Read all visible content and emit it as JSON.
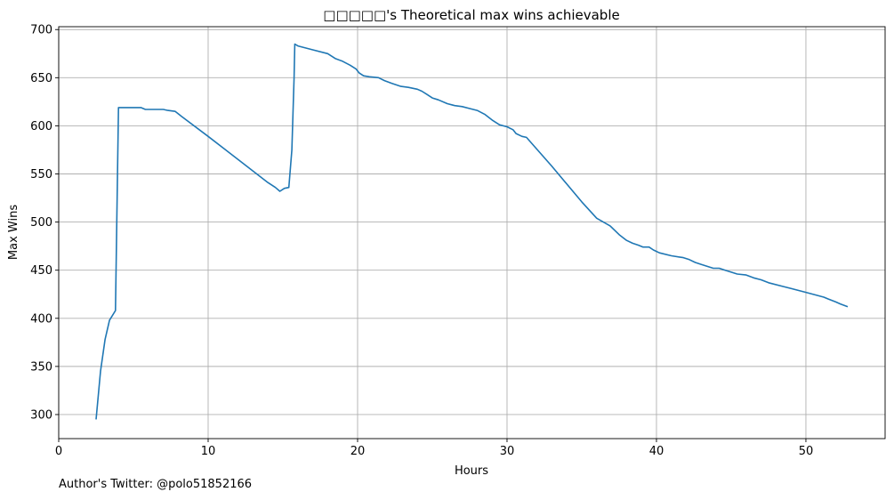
{
  "chart_data": {
    "type": "line",
    "title": "□□□□□'s Theoretical max wins achievable",
    "xlabel": "Hours",
    "ylabel": "Max Wins",
    "xlim": [
      0,
      55.3
    ],
    "ylim": [
      275,
      703
    ],
    "xticks": [
      0,
      10,
      20,
      30,
      40,
      50
    ],
    "yticks": [
      300,
      350,
      400,
      450,
      500,
      550,
      600,
      650,
      700
    ],
    "grid": true,
    "line_color": "#1f77b4",
    "series": [
      {
        "x": [
          2.5,
          2.8,
          3.1,
          3.4,
          3.8,
          4.0,
          4.5,
          5.0,
          5.5,
          5.8,
          6.5,
          7.0,
          7.3,
          7.8,
          8.2,
          10.0,
          12.0,
          14.0,
          14.5,
          14.8,
          15.1,
          15.4,
          15.6,
          15.75,
          15.8,
          16.0,
          17.0,
          18.0,
          18.5,
          19.0,
          19.5,
          19.9,
          20.1,
          20.4,
          20.8,
          21.4,
          21.8,
          22.3,
          22.9,
          23.4,
          24.0,
          24.3,
          24.6,
          25.0,
          25.4,
          26.0,
          26.5,
          27.0,
          27.5,
          28.0,
          28.5,
          29.0,
          29.5,
          30.0,
          30.4,
          30.6,
          31.0,
          31.3,
          33.0,
          35.0,
          36.0,
          36.9,
          37.5,
          38.0,
          38.4,
          38.8,
          39.1,
          39.5,
          39.8,
          40.2,
          41.0,
          41.8,
          42.2,
          42.6,
          43.0,
          43.4,
          43.8,
          44.2,
          44.6,
          45.0,
          45.4,
          46.0,
          46.5,
          47.0,
          47.5,
          48.5,
          50.0,
          51.2,
          51.5,
          52.0,
          52.3,
          52.8
        ],
        "y": [
          295,
          345,
          378,
          398,
          408,
          619,
          619,
          619,
          619,
          617,
          617,
          617,
          616,
          615,
          610,
          589,
          565,
          541,
          536,
          532,
          535,
          536,
          575,
          650,
          685,
          683,
          679,
          675,
          670,
          667,
          663,
          659,
          655,
          652,
          651,
          650,
          647,
          644,
          641,
          640,
          638,
          636,
          633,
          629,
          627,
          623,
          621,
          620,
          618,
          616,
          612,
          606,
          601,
          599,
          596,
          592,
          589,
          588,
          558,
          521,
          504,
          496,
          487,
          481,
          478,
          476,
          474,
          474,
          471,
          468,
          465,
          463,
          461,
          458,
          456,
          454,
          452,
          452,
          450,
          448,
          446,
          445,
          442,
          440,
          437,
          433,
          427,
          422,
          420,
          417,
          415,
          412
        ]
      }
    ]
  },
  "footer": {
    "text": "Author's Twitter: @polo51852166"
  }
}
